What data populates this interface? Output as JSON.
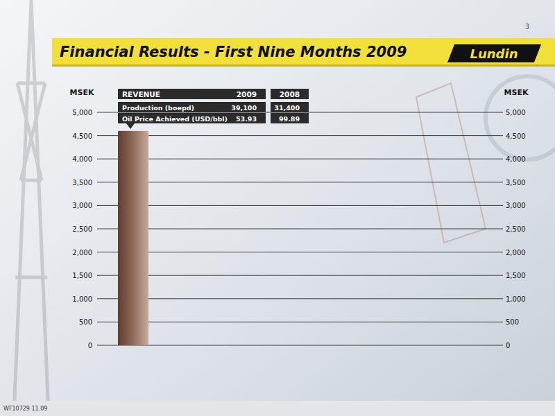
{
  "chart_data": {
    "type": "bar",
    "title": "Financial Results - First Nine Months 2009",
    "y_label": "MSEK",
    "categories": [
      null
    ],
    "values": [
      4600
    ],
    "color": "#8a6656",
    "ylim": [
      0,
      5000
    ],
    "yticks": [
      0,
      500,
      {
        "value": 1000,
        "label": "1,000"
      },
      {
        "value": 1500,
        "label": "1,500"
      },
      {
        "value": 2000,
        "label": "2,000"
      },
      {
        "value": 2500,
        "label": "2,500"
      },
      {
        "value": 3000,
        "label": "3,000"
      },
      {
        "value": 3500,
        "label": "3,500"
      },
      {
        "value": 4000,
        "label": "4,000"
      },
      {
        "value": 4500,
        "label": "4,500"
      },
      {
        "value": 5000,
        "label": "5,000"
      }
    ],
    "grid": true,
    "table": {
      "columns": [
        "REVENUE",
        "2009",
        "2008"
      ],
      "rows": [
        [
          "Production (boepd)",
          "39,100",
          "31,400"
        ],
        [
          "Oil Price Achieved (USD/bbl)",
          "53.93",
          "99.89"
        ]
      ]
    }
  },
  "page": {
    "number": "3",
    "logo": "Lundin",
    "footer": "WF10729 11.09"
  }
}
